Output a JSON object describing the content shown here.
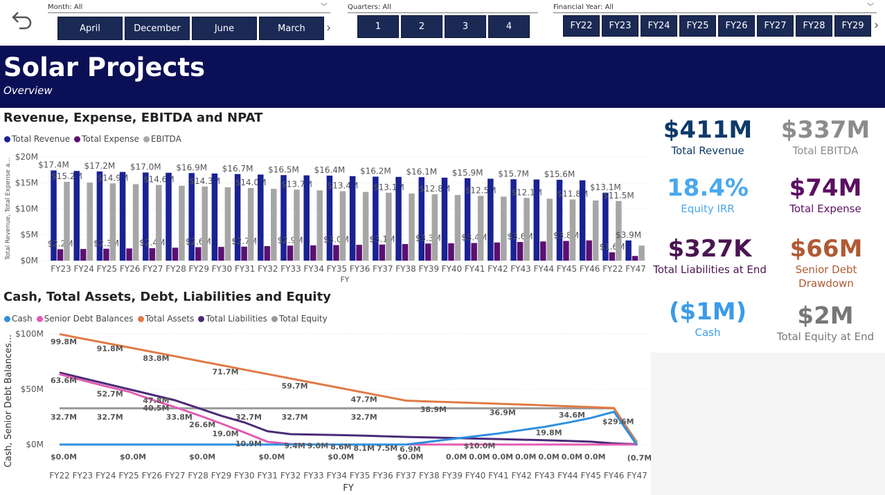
{
  "slicers": {
    "month": {
      "title": "Month: All",
      "tiles": [
        "April",
        "December",
        "June",
        "March"
      ]
    },
    "quarters": {
      "title": "Quarters: All",
      "tiles": [
        "1",
        "2",
        "3",
        "4"
      ]
    },
    "financial_year": {
      "title": "Financial Year: All",
      "tiles": [
        "FY22",
        "FY23",
        "FY24",
        "FY25",
        "FY26",
        "FY27",
        "FY28",
        "FY29"
      ]
    }
  },
  "banner": {
    "title": "Solar Projects",
    "subtitle": "Overview"
  },
  "colors": {
    "navy": "#0b0f55",
    "revenue": "#1a2294",
    "expense": "#5c0f72",
    "ebitda": "#a6a6a6",
    "cash": "#2e8fdf",
    "senior_debt": "#e25cb1",
    "total_assets": "#e07a45",
    "total_liabilities": "#4a2a78",
    "total_equity": "#999999"
  },
  "kpis": [
    {
      "value": "$411M",
      "label": "Total Revenue",
      "color": "#0d3a68"
    },
    {
      "value": "$337M",
      "label": "Total EBITDA",
      "color": "#8c8c8c"
    },
    {
      "value": "18.4%",
      "label": "Equity IRR",
      "color": "#4aa8ee"
    },
    {
      "value": "$74M",
      "label": "Total Expense",
      "color": "#5c0f62"
    },
    {
      "value": "$327K",
      "label": "Total Liabilities at End",
      "color": "#4a1550"
    },
    {
      "value": "$66M",
      "label": "Senior Debt Drawdown",
      "color": "#b05a33"
    },
    {
      "value": "($1M)",
      "label": "Cash",
      "color": "#3b9be8"
    },
    {
      "value": "$2M",
      "label": "Total Equity at End",
      "color": "#777777"
    }
  ],
  "chart_data": [
    {
      "type": "bar",
      "title": "Revenue, Expense, EBITDA and NPAT",
      "xlabel": "FY",
      "ylabel": "Total Revenue, Total Expense a...",
      "ylim": [
        0,
        20
      ],
      "yticks": [
        "$0M",
        "$5M",
        "$10M",
        "$15M",
        "$20M"
      ],
      "categories": [
        "FY23",
        "FY24",
        "FY25",
        "FY26",
        "FY27",
        "FY28",
        "FY29",
        "FY30",
        "FY31",
        "FY32",
        "FY33",
        "FY34",
        "FY35",
        "FY36",
        "FY37",
        "FY38",
        "FY39",
        "FY40",
        "FY41",
        "FY42",
        "FY43",
        "FY44",
        "FY45",
        "FY46",
        "FY22",
        "FY47"
      ],
      "legend": "top-left",
      "series": [
        {
          "name": "Total Revenue",
          "values": [
            17.4,
            17.3,
            17.2,
            17.1,
            17.0,
            16.95,
            16.9,
            16.8,
            16.7,
            16.6,
            16.5,
            16.45,
            16.4,
            16.3,
            16.2,
            16.15,
            16.1,
            16.0,
            15.9,
            15.8,
            15.7,
            15.65,
            15.6,
            15.5,
            13.1,
            3.9
          ],
          "labels": [
            "$17.4M",
            "",
            "$17.2M",
            "",
            "$17.0M",
            "",
            "$16.9M",
            "",
            "$16.7M",
            "",
            "$16.5M",
            "",
            "$16.4M",
            "",
            "$16.2M",
            "",
            "$16.1M",
            "",
            "$15.9M",
            "",
            "$15.7M",
            "",
            "$15.6M",
            "",
            "$13.1M",
            "$3.9M"
          ]
        },
        {
          "name": "Total Expense",
          "values": [
            2.2,
            2.25,
            2.3,
            2.35,
            2.4,
            2.5,
            2.6,
            2.65,
            2.7,
            2.8,
            2.9,
            2.95,
            3.0,
            3.05,
            3.1,
            3.2,
            3.3,
            3.35,
            3.4,
            3.5,
            3.6,
            3.7,
            3.8,
            3.9,
            1.6,
            0.9
          ],
          "labels": [
            "$2.2M",
            "",
            "$2.3M",
            "",
            "$2.4M",
            "",
            "$2.6M",
            "",
            "$2.7M",
            "",
            "$2.9M",
            "",
            "$3.0M",
            "",
            "$3.1M",
            "",
            "$3.3M",
            "",
            "$3.4M",
            "",
            "$3.6M",
            "",
            "$3.8M",
            "",
            "$1.6M",
            ""
          ]
        },
        {
          "name": "EBITDA",
          "values": [
            15.2,
            15.05,
            14.9,
            14.75,
            14.6,
            14.45,
            14.3,
            14.15,
            14.0,
            13.85,
            13.7,
            13.55,
            13.4,
            13.25,
            13.1,
            12.95,
            12.8,
            12.65,
            12.5,
            12.35,
            12.1,
            11.95,
            11.8,
            11.6,
            11.5,
            2.9
          ],
          "labels": [
            "$15.2M",
            "",
            "$14.9M",
            "",
            "$14.6M",
            "",
            "$14.3M",
            "",
            "$14.0M",
            "",
            "$13.7M",
            "",
            "$13.4M",
            "",
            "$13.1M",
            "",
            "$12.8M",
            "",
            "$12.5M",
            "",
            "$12.1M",
            "",
            "$11.8M",
            "",
            "$11.5M",
            ""
          ]
        }
      ]
    },
    {
      "type": "line",
      "title": "Cash, Total Assets, Debt, Liabilities and Equity",
      "xlabel": "FY",
      "ylabel": "Cash, Senior Debt Balances...",
      "ylim": [
        0,
        100
      ],
      "yticks": [
        "$0M",
        "$50M",
        "$100M"
      ],
      "x": [
        "FY22",
        "FY23",
        "FY24",
        "FY25",
        "FY26",
        "FY27",
        "FY28",
        "FY29",
        "FY30",
        "FY31",
        "FY32",
        "FY33",
        "FY34",
        "FY35",
        "FY36",
        "FY37",
        "FY38",
        "FY39",
        "FY40",
        "FY41",
        "FY42",
        "FY43",
        "FY44",
        "FY45",
        "FY46",
        "FY47"
      ],
      "legend": "top-left",
      "series": [
        {
          "name": "Cash",
          "values": [
            0,
            0,
            0,
            0,
            0,
            0,
            0,
            0,
            0,
            0,
            0,
            0,
            0,
            0,
            0,
            0,
            2.5,
            5,
            7.5,
            10,
            13,
            16,
            19.8,
            24,
            29.6,
            -0.7
          ]
        },
        {
          "name": "Senior Debt Balances",
          "values": [
            63.6,
            58,
            52.7,
            47.8,
            40.5,
            33.8,
            26.6,
            19.0,
            10.9,
            2.5,
            0.5,
            0,
            0,
            0,
            0,
            0,
            0,
            0,
            0,
            0,
            0,
            0,
            0,
            0,
            0,
            0
          ]
        },
        {
          "name": "Total Assets",
          "values": [
            99.8,
            95.7,
            91.8,
            87.8,
            83.8,
            79.8,
            75.7,
            71.7,
            67.7,
            63.7,
            59.7,
            55.7,
            51.7,
            47.7,
            43.7,
            39.7,
            38.9,
            38.3,
            37.6,
            36.9,
            36.2,
            35.4,
            34.6,
            33.8,
            33.0,
            0
          ]
        },
        {
          "name": "Total Liabilities",
          "values": [
            65,
            60,
            55,
            50,
            45,
            40,
            33,
            26,
            20,
            12,
            9.4,
            9.0,
            8.6,
            8.1,
            7.5,
            6.9,
            6.4,
            5.9,
            5.4,
            4.9,
            4.4,
            3.9,
            3.3,
            2.6,
            1.0,
            0.3
          ]
        },
        {
          "name": "Total Equity",
          "values": [
            32.7,
            32.7,
            32.7,
            32.7,
            32.7,
            32.7,
            32.7,
            32.7,
            32.7,
            32.7,
            32.7,
            32.7,
            32.7,
            32.7,
            32.7,
            32.7,
            32.7,
            32.7,
            32.7,
            32.7,
            32.7,
            32.7,
            32.7,
            32.7,
            32.7,
            2
          ]
        }
      ],
      "annotations": [
        {
          "text": "99.8M",
          "i": 0,
          "v": 93
        },
        {
          "text": "91.8M",
          "i": 2,
          "v": 87
        },
        {
          "text": "83.8M",
          "i": 4,
          "v": 78
        },
        {
          "text": "71.7M",
          "i": 7,
          "v": 66
        },
        {
          "text": "59.7M",
          "i": 10,
          "v": 53
        },
        {
          "text": "47.7M",
          "i": 13,
          "v": 41
        },
        {
          "text": "38.9M",
          "i": 16,
          "v": 32
        },
        {
          "text": "36.9M",
          "i": 19,
          "v": 29
        },
        {
          "text": "34.6M",
          "i": 22,
          "v": 27
        },
        {
          "text": "63.6M",
          "i": 0,
          "v": 58
        },
        {
          "text": "52.7M",
          "i": 2,
          "v": 46
        },
        {
          "text": "47.8M",
          "i": 4,
          "v": 40
        },
        {
          "text": "40.5M",
          "i": 4,
          "v": 33
        },
        {
          "text": "33.8M",
          "i": 5,
          "v": 25
        },
        {
          "text": "26.6M",
          "i": 6,
          "v": 18
        },
        {
          "text": "19.0M",
          "i": 7,
          "v": 10
        },
        {
          "text": "10.9M",
          "i": 8,
          "v": 1
        },
        {
          "text": "32.7M",
          "i": 0,
          "v": 25
        },
        {
          "text": "32.7M",
          "i": 2,
          "v": 25
        },
        {
          "text": "32.7M",
          "i": 8,
          "v": 25
        },
        {
          "text": "32.7M",
          "i": 10,
          "v": 25
        },
        {
          "text": "32.7M",
          "i": 13,
          "v": 25
        },
        {
          "text": "9.4M",
          "i": 10,
          "v": -1
        },
        {
          "text": "9.0M",
          "i": 11,
          "v": -1
        },
        {
          "text": "8.6M",
          "i": 12,
          "v": -2
        },
        {
          "text": "8.1M",
          "i": 13,
          "v": -3
        },
        {
          "text": "7.5M",
          "i": 14,
          "v": -3
        },
        {
          "text": "6.9M",
          "i": 15,
          "v": -4
        },
        {
          "text": "$10.0M",
          "i": 18,
          "v": -1
        },
        {
          "text": "19.8M",
          "i": 21,
          "v": 11
        },
        {
          "text": "$29.6M",
          "i": 24,
          "v": 21
        },
        {
          "text": "$0.0M",
          "i": 0,
          "v": -11
        },
        {
          "text": "$0.0M",
          "i": 3,
          "v": -11
        },
        {
          "text": "$0.0M",
          "i": 6,
          "v": -11
        },
        {
          "text": "$0.0M",
          "i": 9,
          "v": -11
        },
        {
          "text": "$0.0M",
          "i": 12,
          "v": -11
        },
        {
          "text": "$0.0M",
          "i": 15,
          "v": -11
        },
        {
          "text": "0.0M",
          "i": 17,
          "v": -11
        },
        {
          "text": "0.0M",
          "i": 18,
          "v": -11
        },
        {
          "text": "0.0M",
          "i": 19,
          "v": -11
        },
        {
          "text": "0.0M",
          "i": 20,
          "v": -11
        },
        {
          "text": "0.0M",
          "i": 21,
          "v": -11
        },
        {
          "text": "0.0M",
          "i": 22,
          "v": -11
        },
        {
          "text": "0.0M",
          "i": 23,
          "v": -11
        },
        {
          "text": "(0.7M)",
          "i": 25,
          "v": -12
        }
      ]
    }
  ]
}
